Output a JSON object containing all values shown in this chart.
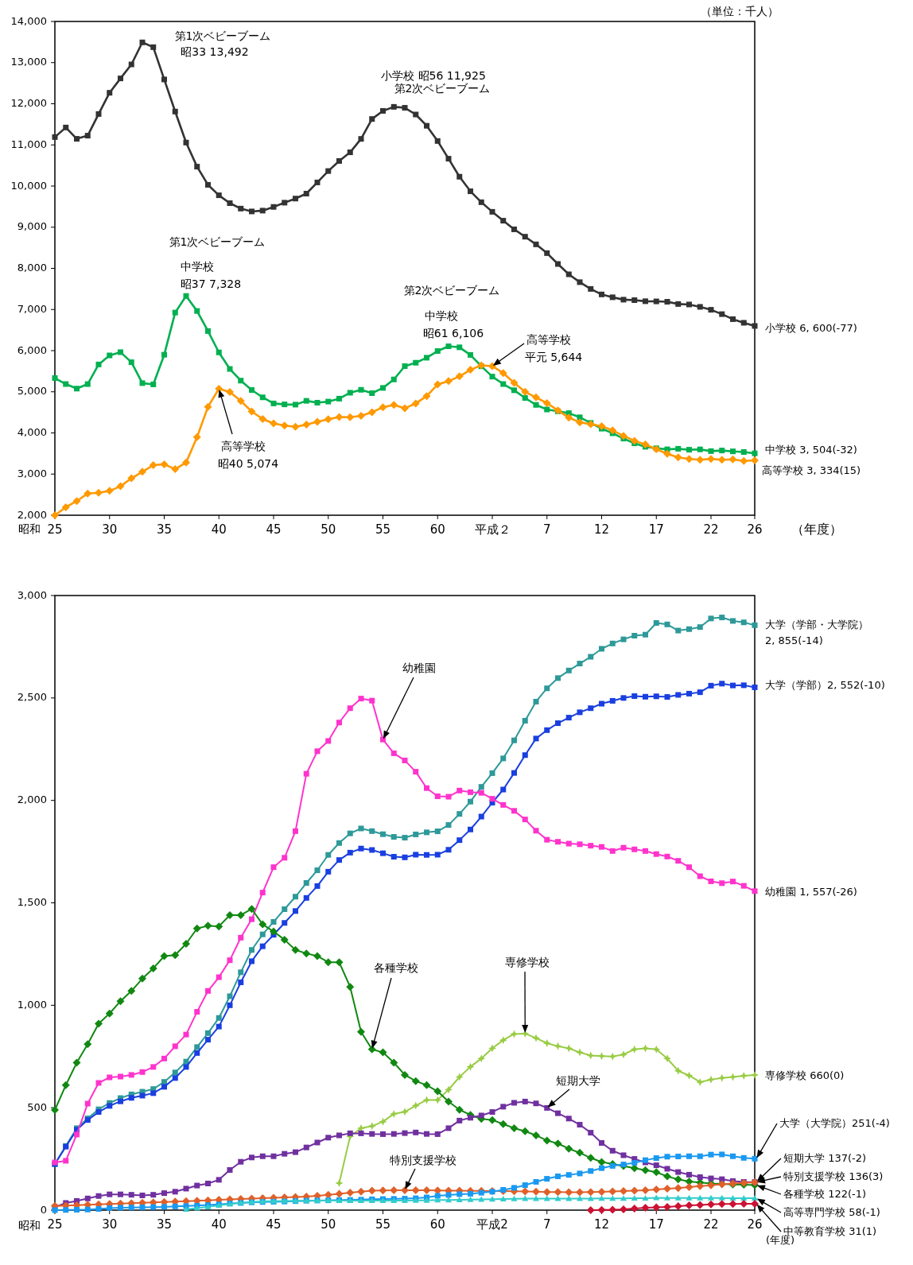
{
  "chart_data": [
    {
      "type": "line",
      "marker": "square",
      "xlabel": "（年度）",
      "categories": [
        "25",
        null,
        null,
        null,
        null,
        "30",
        null,
        null,
        null,
        null,
        "35",
        null,
        null,
        null,
        null,
        "40",
        null,
        null,
        null,
        null,
        "45",
        null,
        null,
        null,
        null,
        "50",
        null,
        null,
        null,
        null,
        "55",
        null,
        null,
        null,
        null,
        "60",
        null,
        null,
        null,
        null,
        "平成２",
        null,
        null,
        null,
        null,
        "7",
        null,
        null,
        null,
        null,
        "12",
        null,
        null,
        null,
        null,
        "17",
        null,
        null,
        null,
        null,
        "22",
        null,
        null,
        null,
        "26"
      ],
      "ylim": [
        2000,
        14000
      ],
      "yticks": [
        {
          "value": 2000,
          "label": "2,000"
        },
        {
          "value": 3000,
          "label": "3,000"
        },
        {
          "value": 4000,
          "label": "4,000"
        },
        {
          "value": 5000,
          "label": "5,000"
        },
        {
          "value": 6000,
          "label": "6,000"
        },
        {
          "value": 7000,
          "label": "7,000"
        },
        {
          "value": 8000,
          "label": "8,000"
        },
        {
          "value": 9000,
          "label": "9,000"
        },
        {
          "value": 10000,
          "label": "10,000"
        },
        {
          "value": 11000,
          "label": "11,000"
        },
        {
          "value": 12000,
          "label": "12,000"
        },
        {
          "value": 13000,
          "label": "13,000"
        },
        {
          "value": 14000,
          "label": "14,000"
        }
      ],
      "series": [
        {
          "name": "小学校 6, 600(-77)",
          "color": "#333333",
          "values": [
            11191,
            11423,
            11148,
            11225,
            11751,
            12267,
            12616,
            12956,
            13492,
            13375,
            12591,
            11811,
            11057,
            10471,
            10030,
            9776,
            9584,
            9452,
            9383,
            9403,
            9493,
            9596,
            9696,
            9816,
            10088,
            10365,
            10610,
            10820,
            11146,
            11630,
            11827,
            11925,
            11902,
            11739,
            11465,
            11095,
            10665,
            10227,
            9873,
            9607,
            9374,
            9158,
            8948,
            8769,
            8583,
            8370,
            8106,
            7855,
            7664,
            7500,
            7366,
            7297,
            7239,
            7227,
            7201,
            7197,
            7188,
            7133,
            7122,
            7064,
            6993,
            6887,
            6765,
            6677,
            6600
          ]
        },
        {
          "name": "中学校 3, 504(-32)",
          "color": "#00b050",
          "values": [
            5333,
            5188,
            5077,
            5187,
            5664,
            5884,
            5963,
            5718,
            5210,
            5180,
            5900,
            6925,
            7328,
            6964,
            6476,
            5957,
            5555,
            5271,
            5044,
            4865,
            4717,
            4694,
            4688,
            4780,
            4735,
            4762,
            4833,
            4977,
            5048,
            4966,
            5094,
            5300,
            5623,
            5706,
            5828,
            5990,
            6106,
            6081,
            5896,
            5620,
            5369,
            5188,
            5037,
            4850,
            4681,
            4570,
            4527,
            4481,
            4380,
            4243,
            4104,
            3992,
            3863,
            3748,
            3664,
            3627,
            3602,
            3615,
            3592,
            3600,
            3558,
            3573,
            3552,
            3536,
            3504
          ]
        },
        {
          "name": "高等学校 3, 334(15)",
          "color": "#ff9900",
          "marker": "diamond",
          "values": [
            2000,
            2194,
            2344,
            2528,
            2545,
            2592,
            2703,
            2898,
            3057,
            3216,
            3239,
            3119,
            3282,
            3897,
            4634,
            5074,
            4997,
            4777,
            4522,
            4338,
            4232,
            4178,
            4151,
            4201,
            4270,
            4333,
            4386,
            4381,
            4415,
            4504,
            4622,
            4683,
            4601,
            4716,
            4896,
            5178,
            5259,
            5375,
            5534,
            5644,
            5623,
            5455,
            5218,
            4998,
            4863,
            4725,
            4547,
            4371,
            4258,
            4212,
            4165,
            4062,
            3929,
            3809,
            3719,
            3605,
            3494,
            3407,
            3367,
            3347,
            3369,
            3349,
            3356,
            3320,
            3334
          ]
        }
      ],
      "annotations": [
        "第1次ベビーブーム",
        "昭33 13,492",
        "小学校 昭56  11,925",
        "第2次ベビーブーム",
        "第1次ベビーブーム",
        "中学校",
        "昭37 7,328",
        "第2次ベビーブーム",
        "中学校",
        "昭61 6,106",
        {
          "text": "高等学校",
          "x": "平成２",
          "y": 5623
        },
        "平元 5,644",
        "高等学校",
        "昭40 5,074",
        "（単位：千人）",
        "昭和"
      ]
    },
    {
      "type": "line",
      "marker": "square",
      "xlabel": "(年度)",
      "categories": [
        "25",
        null,
        null,
        null,
        null,
        "30",
        null,
        null,
        null,
        null,
        "35",
        null,
        null,
        null,
        null,
        "40",
        null,
        null,
        null,
        null,
        "45",
        null,
        null,
        null,
        null,
        "50",
        null,
        null,
        null,
        null,
        "55",
        null,
        null,
        null,
        null,
        "60",
        null,
        null,
        null,
        null,
        "平成2",
        null,
        null,
        null,
        null,
        "7",
        null,
        null,
        null,
        null,
        "12",
        null,
        null,
        null,
        null,
        "17",
        null,
        null,
        null,
        null,
        "22",
        null,
        null,
        null,
        "26"
      ],
      "ylim": [
        0,
        3000
      ],
      "yticks": [
        0,
        500,
        {
          "value": 1000,
          "label": "1,000"
        },
        {
          "value": 1500,
          "label": "1,500"
        },
        {
          "value": 2000,
          "label": "2,000"
        },
        {
          "value": 2500,
          "label": "2,500"
        },
        {
          "value": 3000,
          "label": "3,000"
        }
      ],
      "series": [
        {
          "name": "大学（学部・大学院）\n2, 855(-14)",
          "color": "#2e9999",
          "values": [
            225,
            313,
            400,
            448,
            492,
            523,
            547,
            565,
            578,
            591,
            626,
            672,
            725,
            796,
            864,
            938,
            1044,
            1161,
            1270,
            1346,
            1407,
            1469,
            1530,
            1597,
            1659,
            1734,
            1792,
            1839,
            1863,
            1850,
            1835,
            1822,
            1818,
            1834,
            1844,
            1849,
            1880,
            1934,
            1994,
            2066,
            2133,
            2205,
            2293,
            2389,
            2482,
            2547,
            2597,
            2634,
            2668,
            2701,
            2740,
            2766,
            2786,
            2804,
            2809,
            2866,
            2859,
            2829,
            2836,
            2846,
            2888,
            2893,
            2876,
            2869,
            2855
          ]
        },
        {
          "name": "大学（学部）2, 552(-10)",
          "color": "#1a3fe0",
          "values": [
            225,
            310,
            392,
            440,
            479,
            509,
            531,
            548,
            559,
            571,
            602,
            645,
            699,
            767,
            832,
            896,
            1000,
            1112,
            1215,
            1288,
            1344,
            1402,
            1460,
            1524,
            1582,
            1652,
            1709,
            1745,
            1765,
            1758,
            1742,
            1725,
            1722,
            1735,
            1734,
            1735,
            1759,
            1806,
            1858,
            1921,
            1989,
            2053,
            2134,
            2221,
            2302,
            2343,
            2377,
            2404,
            2430,
            2450,
            2472,
            2486,
            2500,
            2509,
            2506,
            2508,
            2505,
            2515,
            2521,
            2528,
            2560,
            2570,
            2561,
            2562,
            2552
          ]
        },
        {
          "name": "幼稚園 1, 557(-26)",
          "color": "#ff33cc",
          "values": [
            233,
            241,
            369,
            520,
            621,
            648,
            652,
            660,
            674,
            699,
            740,
            800,
            857,
            968,
            1070,
            1137,
            1220,
            1330,
            1420,
            1550,
            1674,
            1720,
            1850,
            2130,
            2240,
            2290,
            2380,
            2450,
            2497,
            2487,
            2297,
            2230,
            2195,
            2140,
            2060,
            2020,
            2018,
            2048,
            2040,
            2037,
            2008,
            1978,
            1949,
            1907,
            1852,
            1808,
            1798,
            1789,
            1786,
            1779,
            1773,
            1753,
            1769,
            1761,
            1753,
            1738,
            1726,
            1705,
            1674,
            1630,
            1605,
            1596,
            1604,
            1583,
            1557
          ]
        },
        {
          "name": "専修学校 660(0)",
          "color": "#99cc44",
          "marker": "star",
          "values": [
            null,
            null,
            null,
            null,
            null,
            null,
            null,
            null,
            null,
            null,
            null,
            null,
            null,
            null,
            null,
            null,
            null,
            null,
            null,
            null,
            null,
            null,
            null,
            null,
            null,
            null,
            132,
            360,
            400,
            410,
            432,
            470,
            480,
            510,
            538,
            538,
            588,
            650,
            700,
            740,
            790,
            830,
            860,
            862,
            840,
            815,
            800,
            790,
            770,
            755,
            752,
            750,
            760,
            785,
            790,
            785,
            740,
            680,
            657,
            625,
            637,
            645,
            650,
            656,
            660
          ]
        },
        {
          "name": "各種学校 122(-1)",
          "color": "#118811",
          "marker": "diamond",
          "values": [
            489,
            610,
            720,
            810,
            910,
            960,
            1020,
            1070,
            1130,
            1180,
            1240,
            1245,
            1300,
            1375,
            1388,
            1385,
            1440,
            1440,
            1470,
            1395,
            1360,
            1320,
            1270,
            1253,
            1240,
            1210,
            1210,
            1090,
            870,
            785,
            770,
            720,
            660,
            630,
            610,
            580,
            530,
            490,
            465,
            445,
            440,
            420,
            400,
            385,
            365,
            340,
            325,
            300,
            280,
            255,
            235,
            225,
            215,
            205,
            195,
            185,
            165,
            150,
            140,
            135,
            130,
            128,
            125,
            124,
            122
          ]
        },
        {
          "name": "短期大学  137(-2)",
          "color": "#7030a0",
          "values": [
            15,
            35,
            45,
            57,
            69,
            77,
            77,
            75,
            72,
            75,
            83,
            90,
            105,
            120,
            130,
            148,
            196,
            236,
            257,
            263,
            263,
            275,
            283,
            306,
            330,
            354,
            365,
            375,
            375,
            372,
            371,
            372,
            376,
            379,
            372,
            371,
            400,
            437,
            451,
            462,
            479,
            505,
            524,
            530,
            521,
            499,
            473,
            447,
            417,
            378,
            328,
            290,
            268,
            250,
            233,
            219,
            202,
            186,
            173,
            161,
            155,
            151,
            142,
            138,
            137
          ]
        },
        {
          "name": "特別支援学校 136(3)",
          "color": "#e0602a",
          "marker": "diamond",
          "values": [
            20,
            22,
            24,
            26,
            28,
            30,
            32,
            34,
            36,
            38,
            40,
            42,
            44,
            46,
            48,
            50,
            52,
            54,
            56,
            58,
            60,
            62,
            64,
            66,
            70,
            75,
            80,
            85,
            90,
            95,
            96,
            97,
            97,
            97,
            97,
            96,
            95,
            95,
            94,
            94,
            93,
            93,
            92,
            91,
            90,
            88,
            88,
            87,
            87,
            88,
            89,
            91,
            93,
            95,
            97,
            101,
            105,
            108,
            113,
            117,
            121,
            126,
            130,
            133,
            136
          ]
        },
        {
          "name": "大学（大学院）251(-4)",
          "color": "#1a99f0",
          "values": [
            0,
            1,
            2,
            3,
            6,
            10,
            12,
            13,
            14,
            15,
            16,
            18,
            20,
            22,
            25,
            28,
            32,
            35,
            38,
            40,
            41,
            42,
            44,
            46,
            47,
            48,
            49,
            50,
            51,
            53,
            54,
            55,
            56,
            58,
            62,
            70,
            74,
            78,
            80,
            85,
            90,
            99,
            109,
            122,
            138,
            153,
            165,
            172,
            179,
            191,
            205,
            216,
            223,
            231,
            244,
            254,
            261,
            262,
            263,
            263,
            271,
            272,
            263,
            255,
            251
          ]
        },
        {
          "name": "高等専門学校 58(-1)",
          "color": "#33cccc",
          "marker": "triangle",
          "values": [
            null,
            null,
            null,
            null,
            null,
            null,
            null,
            null,
            null,
            null,
            null,
            null,
            4,
            10,
            16,
            23,
            30,
            36,
            40,
            43,
            44,
            45,
            46,
            46,
            47,
            48,
            47,
            47,
            47,
            47,
            47,
            47,
            47,
            48,
            48,
            49,
            49,
            50,
            51,
            52,
            53,
            54,
            55,
            56,
            56,
            56,
            56,
            56,
            56,
            56,
            57,
            57,
            57,
            58,
            58,
            60,
            59,
            59,
            59,
            59,
            59,
            59,
            58,
            58,
            58
          ]
        },
        {
          "name": "中等教育学校 31(1)",
          "color": "#cc1133",
          "marker": "diamond",
          "values": [
            null,
            null,
            null,
            null,
            null,
            null,
            null,
            null,
            null,
            null,
            null,
            null,
            null,
            null,
            null,
            null,
            null,
            null,
            null,
            null,
            null,
            null,
            null,
            null,
            null,
            null,
            null,
            null,
            null,
            null,
            null,
            null,
            null,
            null,
            null,
            null,
            null,
            null,
            null,
            null,
            null,
            null,
            null,
            null,
            null,
            null,
            null,
            null,
            null,
            0,
            1,
            2,
            4,
            8,
            12,
            14,
            16,
            19,
            23,
            25,
            28,
            30,
            30,
            31,
            31
          ]
        }
      ],
      "annotations": [
        "幼稚園",
        "各種学校",
        "専修学校",
        "短期大学",
        "特別支援学校",
        "昭和"
      ]
    }
  ]
}
